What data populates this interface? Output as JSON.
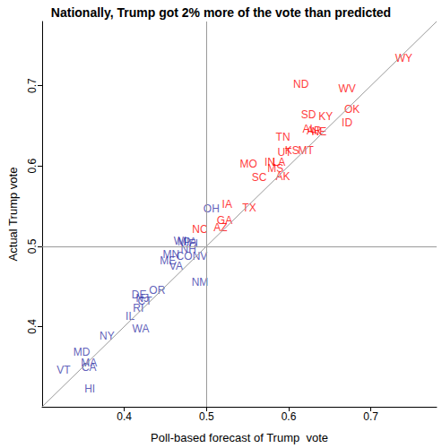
{
  "chart_data": {
    "type": "scatter",
    "title": "Nationally, Trump got 2% more of the vote than predicted",
    "x_label": "Poll-based forecast of Trump  vote",
    "y_label": "Actual Trump vote",
    "xlim": [
      0.3,
      0.78
    ],
    "xticks": [
      0.4,
      0.5,
      0.6,
      0.7
    ],
    "ylim": [
      0.3,
      0.78
    ],
    "yticks": [
      0.4,
      0.5,
      0.6,
      0.7
    ],
    "marker": "text",
    "ref_lines": {
      "x": [
        0.5
      ],
      "y": [
        0.5
      ]
    },
    "labels": [
      "WY",
      "WV",
      "ND",
      "OK",
      "ID",
      "SD",
      "KY",
      "AL",
      "AR",
      "NE",
      "TN",
      "UT",
      "KS",
      "MT",
      "MO",
      "MS",
      "IN",
      "LA",
      "SC",
      "AK",
      "TX",
      "IA",
      "OH",
      "GA",
      "AZ",
      "NC",
      "WI",
      "MI",
      "PA",
      "FL",
      "NH",
      "MN",
      "CO",
      "NV",
      "ME",
      "VA",
      "NM",
      "OR",
      "DE",
      "NJ",
      "CT",
      "RI",
      "IL",
      "WA",
      "NY",
      "MD",
      "MA",
      "CA",
      "VT",
      "HI"
    ],
    "x": [
      0.74,
      0.671,
      0.615,
      0.677,
      0.671,
      0.624,
      0.645,
      0.625,
      0.631,
      0.637,
      0.593,
      0.595,
      0.604,
      0.621,
      0.551,
      0.584,
      0.577,
      0.588,
      0.564,
      0.593,
      0.552,
      0.525,
      0.506,
      0.522,
      0.517,
      0.492,
      0.468,
      0.472,
      0.48,
      0.486,
      0.478,
      0.457,
      0.473,
      0.492,
      0.453,
      0.463,
      0.492,
      0.44,
      0.418,
      0.422,
      0.425,
      0.417,
      0.407,
      0.42,
      0.379,
      0.348,
      0.357,
      0.357,
      0.326,
      0.358
    ],
    "values": [
      0.734,
      0.696,
      0.702,
      0.671,
      0.654,
      0.664,
      0.662,
      0.646,
      0.644,
      0.643,
      0.636,
      0.617,
      0.619,
      0.619,
      0.603,
      0.597,
      0.605,
      0.605,
      0.586,
      0.587,
      0.548,
      0.552,
      0.547,
      0.532,
      0.523,
      0.521,
      0.506,
      0.505,
      0.505,
      0.503,
      0.497,
      0.49,
      0.488,
      0.487,
      0.482,
      0.475,
      0.455,
      0.445,
      0.44,
      0.435,
      0.432,
      0.423,
      0.413,
      0.397,
      0.388,
      0.368,
      0.355,
      0.349,
      0.346,
      0.322
    ],
    "colors": [
      "#ff0000",
      "#ff0000",
      "#ff0000",
      "#ff0000",
      "#ff0000",
      "#ff0000",
      "#ff0000",
      "#ff0000",
      "#ff0000",
      "#ff0000",
      "#ff0000",
      "#ff0000",
      "#ff0000",
      "#ff0000",
      "#ff0000",
      "#ff0000",
      "#ff0000",
      "#ff0000",
      "#ff0000",
      "#ff0000",
      "#ff0000",
      "#ff0000",
      "#3636a8",
      "#ff0000",
      "#ff0000",
      "#ff0000",
      "#3636a8",
      "#3636a8",
      "#3636a8",
      "#3636a8",
      "#3636a8",
      "#3636a8",
      "#3636a8",
      "#3636a8",
      "#3636a8",
      "#3636a8",
      "#3636a8",
      "#3636a8",
      "#3636a8",
      "#3636a8",
      "#3636a8",
      "#3636a8",
      "#3636a8",
      "#3636a8",
      "#3636a8",
      "#3636a8",
      "#3636a8",
      "#3636a8",
      "#3636a8",
      "#3636a8"
    ]
  }
}
